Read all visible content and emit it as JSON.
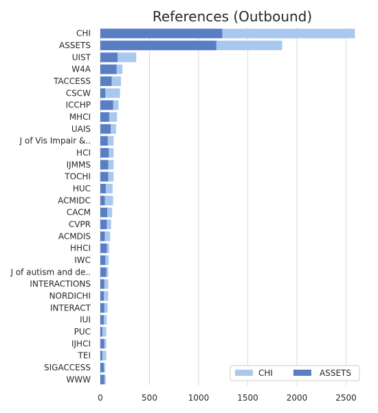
{
  "chart_data": {
    "type": "bar",
    "orientation": "horizontal",
    "stacked": false,
    "title": "References (Outbound)",
    "xlabel": "",
    "ylabel": "",
    "xlim": [
      0,
      2650
    ],
    "xticks": [
      0,
      500,
      1000,
      1500,
      2000,
      2500
    ],
    "grid": "x",
    "legend_position": "bottom-right",
    "categories": [
      "CHI",
      "ASSETS",
      "UIST",
      "W4A",
      "TACCESS",
      "CSCW",
      "ICCHP",
      "MHCI",
      "UAIS",
      "J of Vis Impair &..",
      "HCI",
      "IJMMS",
      "TOCHI",
      "HUC",
      "ACMIDC",
      "CACM",
      "CVPR",
      "ACMDIS",
      "HHCI",
      "IWC",
      "J of autism and de..",
      "INTERACTIONS",
      "NORDICHI",
      "INTERACT",
      "IUI",
      "PUC",
      "IJHCI",
      "TEI",
      "SIGACCESS",
      "WWW"
    ],
    "series": [
      {
        "name": "CHI",
        "color": "#a9c8ee",
        "values": [
          2590,
          1850,
          365,
          225,
          210,
          200,
          185,
          170,
          160,
          135,
          135,
          135,
          135,
          125,
          130,
          120,
          110,
          100,
          90,
          85,
          80,
          80,
          80,
          75,
          65,
          60,
          60,
          60,
          50,
          55
        ]
      },
      {
        "name": "ASSETS",
        "color": "#5a7ec4",
        "values": [
          1240,
          1180,
          175,
          165,
          115,
          50,
          130,
          90,
          105,
          75,
          85,
          80,
          80,
          55,
          45,
          70,
          65,
          45,
          65,
          50,
          60,
          40,
          35,
          40,
          35,
          20,
          40,
          20,
          35,
          40
        ]
      }
    ]
  }
}
